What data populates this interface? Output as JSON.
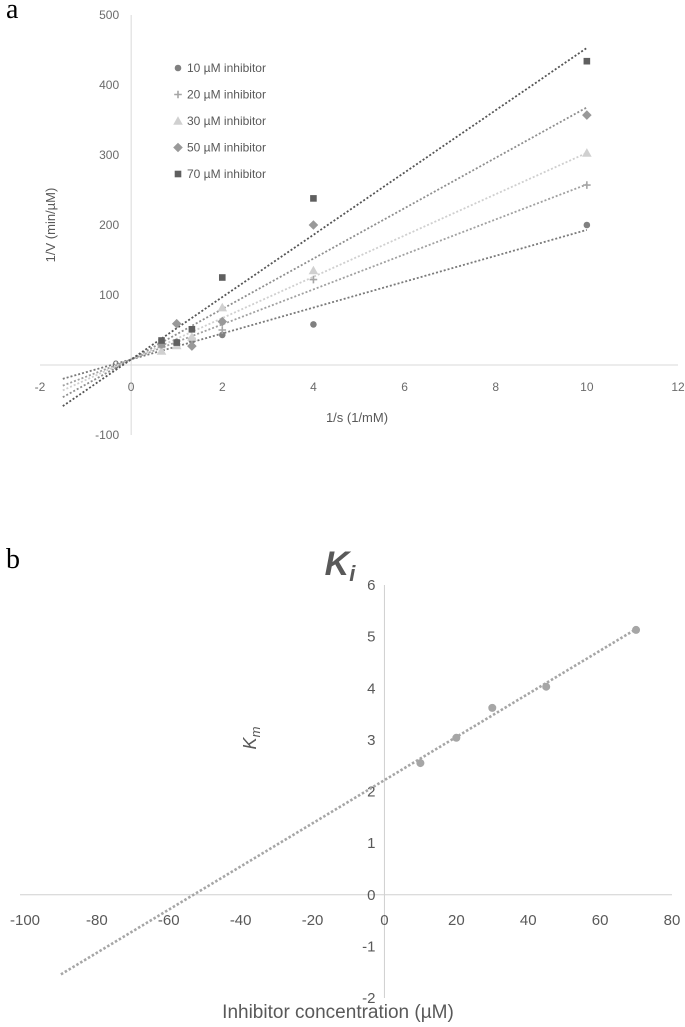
{
  "panels": {
    "a": "a",
    "b": "b"
  },
  "chart_data": [
    {
      "type": "scatter",
      "panel": "a",
      "title": "",
      "xlabel": "1/s (1/mM)",
      "ylabel": "1/V (min/µM)",
      "xlim": [
        -2,
        12
      ],
      "ylim": [
        -100,
        500
      ],
      "xticks": [
        -2,
        0,
        2,
        4,
        6,
        8,
        10,
        12
      ],
      "yticks": [
        -100,
        0,
        100,
        200,
        300,
        400,
        500
      ],
      "legend_position": "top-left",
      "trendline_x_range": [
        -1.5,
        10
      ],
      "series": [
        {
          "name": "10 µM inhibitor",
          "marker": "circle",
          "color": "#808080",
          "line_color": "#7a7a7a",
          "x": [
            0.667,
            1.0,
            1.333,
            2.0,
            4.0,
            10.0
          ],
          "y": [
            28,
            33,
            35,
            43,
            58,
            200
          ],
          "trend": {
            "slope": 18.5,
            "intercept": 8
          }
        },
        {
          "name": "20 µM inhibitor",
          "marker": "plus",
          "color": "#a6a6a6",
          "line_color": "#a0a0a0",
          "x": [
            0.667,
            1.0,
            1.333,
            2.0,
            4.0,
            10.0
          ],
          "y": [
            25,
            30,
            38,
            50,
            122,
            257
          ],
          "trend": {
            "slope": 25,
            "intercept": 8
          }
        },
        {
          "name": "30 µM inhibitor",
          "marker": "triangle",
          "color": "#d0d0d0",
          "line_color": "#cfcfcf",
          "x": [
            0.667,
            1.0,
            1.333,
            2.0,
            4.0,
            10.0
          ],
          "y": [
            20,
            28,
            40,
            82,
            135,
            303
          ],
          "trend": {
            "slope": 29.5,
            "intercept": 8
          }
        },
        {
          "name": "50 µM inhibitor",
          "marker": "diamond",
          "color": "#999999",
          "line_color": "#8f8f8f",
          "x": [
            0.667,
            1.0,
            1.333,
            2.0,
            4.0,
            10.0
          ],
          "y": [
            30,
            59,
            27,
            62,
            200,
            357
          ],
          "trend": {
            "slope": 36,
            "intercept": 8
          }
        },
        {
          "name": "70 µM inhibitor",
          "marker": "square",
          "color": "#5f5f5f",
          "line_color": "#555555",
          "x": [
            0.667,
            1.0,
            1.333,
            2.0,
            4.0,
            10.0
          ],
          "y": [
            35,
            32,
            51,
            125,
            238,
            434
          ],
          "trend": {
            "slope": 44.5,
            "intercept": 8
          }
        }
      ]
    },
    {
      "type": "scatter",
      "panel": "b",
      "title": "Ki",
      "xlabel": "Inhibitor concentration (µM)",
      "ylabel": "Km",
      "xlim": [
        -100,
        80
      ],
      "ylim": [
        -2,
        6
      ],
      "xticks": [
        -100,
        -80,
        -60,
        -40,
        -20,
        0,
        20,
        40,
        60,
        80
      ],
      "yticks": [
        -2,
        -1,
        0,
        1,
        2,
        3,
        4,
        5,
        6
      ],
      "trendline_x_range": [
        -90,
        70
      ],
      "series": [
        {
          "name": "",
          "marker": "circle",
          "color": "#a6a6a6",
          "line_color": "#a6a6a6",
          "x": [
            10,
            20,
            30,
            45,
            70
          ],
          "y": [
            2.55,
            3.04,
            3.62,
            4.03,
            5.13
          ],
          "trend": {
            "slope": 0.0418,
            "intercept": 2.22
          }
        }
      ]
    }
  ]
}
